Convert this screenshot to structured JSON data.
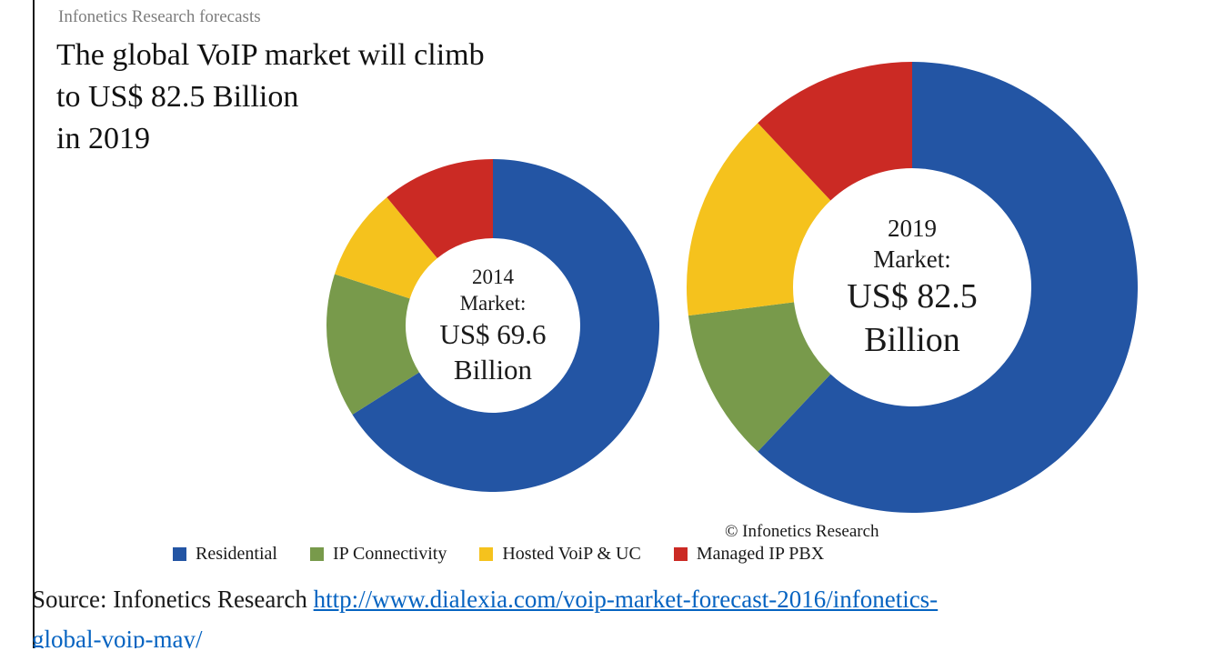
{
  "page": {
    "eyebrow": "Infonetics Research forecasts",
    "title_lines": [
      "The global VoIP market will climb",
      "to US$ 82.5 Billion",
      "in 2019"
    ],
    "copyright": "© Infonetics Research",
    "source_prefix": "Source: Infonetics Research ",
    "source_link_line1": "http://www.dialexia.com/voip-market-forecast-2016/infonetics-",
    "source_link_line2": "global-voip-may/"
  },
  "legend": {
    "items": [
      {
        "label": "Residential",
        "color": "#2355a4"
      },
      {
        "label": "IP Connectivity",
        "color": "#789a4b"
      },
      {
        "label": "Hosted VoiP & UC",
        "color": "#f5c21d"
      },
      {
        "label": "Managed IP PBX",
        "color": "#cb2a24"
      }
    ]
  },
  "chart_data": [
    {
      "type": "pie",
      "title": "2014 Market: US$ 69.6 Billion",
      "total": "US$ 69.6 Billion",
      "categories": [
        "Residential",
        "IP Connectivity",
        "Hosted VoiP & UC",
        "Managed IP PBX"
      ],
      "values": [
        66,
        14,
        9,
        11
      ],
      "colors": [
        "#2355a4",
        "#789a4b",
        "#f5c21d",
        "#cb2a24"
      ],
      "center_label": [
        "2014",
        "Market:",
        "US$ 69.6",
        "Billion"
      ],
      "legend_position": "bottom"
    },
    {
      "type": "pie",
      "title": "2019 Market: US$ 82.5 Billion",
      "total": "US$ 82.5 Billion",
      "categories": [
        "Residential",
        "IP Connectivity",
        "Hosted VoiP & UC",
        "Managed IP PBX"
      ],
      "values": [
        62,
        11,
        15,
        12
      ],
      "colors": [
        "#2355a4",
        "#789a4b",
        "#f5c21d",
        "#cb2a24"
      ],
      "center_label": [
        "2019",
        "Market:",
        "US$ 82.5",
        "Billion"
      ],
      "legend_position": "bottom"
    }
  ]
}
